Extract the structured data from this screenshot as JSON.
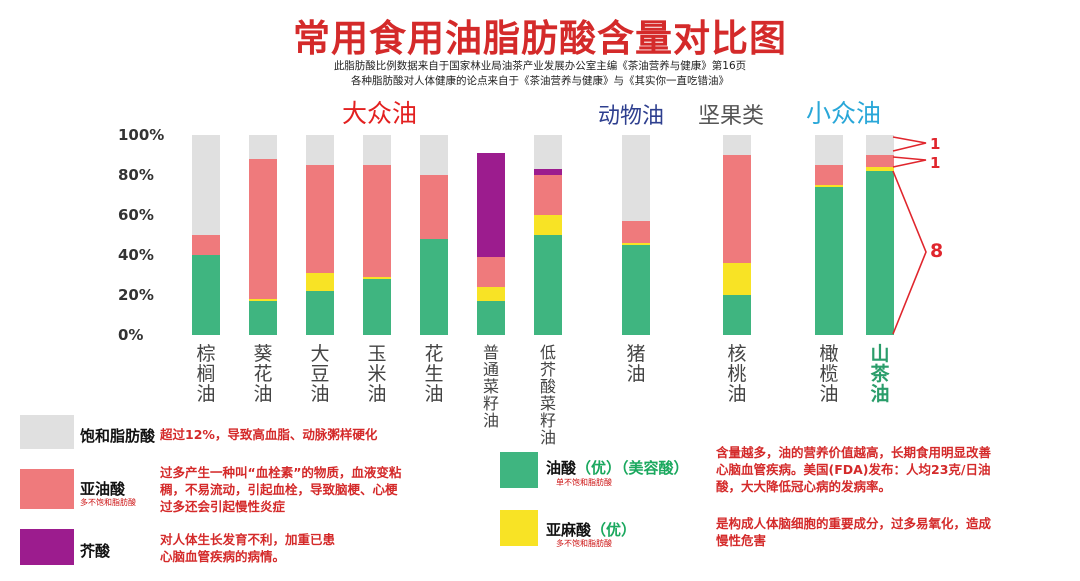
{
  "title": "常用食用油脂肪酸含量对比图",
  "subtitle_lines": [
    "此脂肪酸比例数据来自于国家林业局油茶产业发展办公室主编《茶油营养与健康》第16页",
    "各种脂肪酸对人体健康的论点来自于《茶油营养与健康》与《其实你一直吃错油》"
  ],
  "groups": {
    "mass_oils": "大众油",
    "animal_oil": "动物油",
    "nuts": "坚果类",
    "niche_oils": "小众油"
  },
  "colors": {
    "saturated": "#e0e0e0",
    "linoleic": "#ef7a7c",
    "erucic": "#9c1c8e",
    "oleic": "#3fb580",
    "linolenic": "#f8e325",
    "title_red": "#d42a2a",
    "group_red": "#e32020",
    "group_blue": "#2e3f8f",
    "group_gray": "#555555",
    "group_cyan": "#29a7d8"
  },
  "annotations": {
    "a1": "1",
    "a2": "1",
    "a3": "8"
  },
  "chart_data": {
    "type": "bar",
    "stacked": true,
    "ylim": [
      0,
      100
    ],
    "ytick_labels": [
      "100%",
      "80%",
      "60%",
      "40%",
      "20%",
      "0%"
    ],
    "grid": false,
    "categories": [
      "棕榈油",
      "葵花油",
      "大豆油",
      "玉米油",
      "花生油",
      "普通菜籽油",
      "低芥酸菜籽油",
      "猪油",
      "核桃油",
      "橄榄油",
      "山茶油"
    ],
    "series": [
      {
        "name": "油酸",
        "key": "oleic",
        "values": [
          40,
          17,
          22,
          28,
          48,
          17,
          50,
          45,
          20,
          74,
          82
        ]
      },
      {
        "name": "亚麻酸",
        "key": "linolenic",
        "values": [
          0,
          1,
          9,
          1,
          0,
          7,
          10,
          1,
          16,
          1,
          2
        ]
      },
      {
        "name": "亚油酸",
        "key": "linoleic",
        "values": [
          10,
          70,
          54,
          56,
          32,
          15,
          20,
          11,
          54,
          10,
          6
        ]
      },
      {
        "name": "芥酸",
        "key": "erucic",
        "values": [
          0,
          0,
          0,
          0,
          0,
          52,
          3,
          0,
          0,
          0,
          0
        ]
      },
      {
        "name": "饱和脂肪酸",
        "key": "saturated",
        "values": [
          50,
          12,
          15,
          15,
          20,
          0,
          17,
          43,
          10,
          15,
          10
        ]
      }
    ]
  },
  "legend": {
    "saturated": {
      "name": "饱和脂肪酸",
      "desc": "超过12%，导致高血脂、动脉粥样硬化"
    },
    "linoleic": {
      "name": "亚油酸",
      "sub": "多不饱和脂肪酸",
      "desc": [
        "过多产生一种叫“血栓素”的物质，血液变粘",
        "稠，不易流动，引起血栓，导致脑梗、心梗",
        "过多还会引起慢性炎症"
      ]
    },
    "erucic": {
      "name": "芥酸",
      "desc": [
        "对人体生长发育不利，加重已患",
        "心脑血管疾病的病情。"
      ]
    },
    "oleic": {
      "name": "油酸",
      "tag1": "（优）",
      "tag2": "（美容酸）",
      "sub": "单不饱和脂肪酸",
      "desc": [
        "含量越多，油的营养价值越高，长期食用明显改善",
        "心脑血管疾病。美国(FDA)发布：人均23克/日油",
        "酸，大大降低冠心病的发病率。"
      ]
    },
    "linolenic": {
      "name": "亚麻酸",
      "tag1": "（优）",
      "sub": "多不饱和脂肪酸",
      "desc": [
        "是构成人体脑细胞的重要成分，过多易氧化，造成",
        "慢性危害"
      ]
    }
  }
}
